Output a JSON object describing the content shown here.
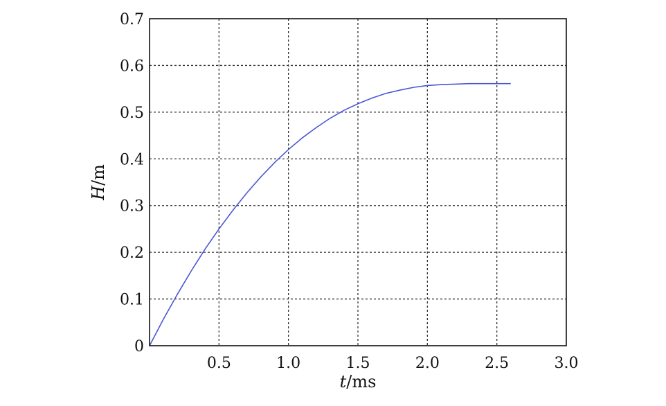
{
  "chart_data": {
    "type": "line",
    "title": "",
    "xlabel": {
      "var": "t",
      "unit": "/ms"
    },
    "ylabel": {
      "var": "H",
      "unit": "/m"
    },
    "xlim": [
      0,
      3.0
    ],
    "ylim": [
      0,
      0.7
    ],
    "x_ticks": [
      0.5,
      1.0,
      1.5,
      2.0,
      2.5,
      3.0
    ],
    "x_tick_labels": [
      "0.5",
      "1.0",
      "1.5",
      "2.0",
      "2.5",
      "3.0"
    ],
    "y_ticks": [
      0,
      0.1,
      0.2,
      0.3,
      0.4,
      0.5,
      0.6,
      0.7
    ],
    "y_tick_labels": [
      "0",
      "0.1",
      "0.2",
      "0.3",
      "0.4",
      "0.5",
      "0.6",
      "0.7"
    ],
    "grid": true,
    "legend": "none",
    "series": [
      {
        "color": "#4a56d6",
        "x": [
          0,
          0.1,
          0.2,
          0.3,
          0.4,
          0.5,
          0.6,
          0.7,
          0.8,
          0.9,
          1.0,
          1.1,
          1.2,
          1.3,
          1.4,
          1.5,
          1.6,
          1.7,
          1.8,
          1.9,
          2.0,
          2.1,
          2.2,
          2.3,
          2.4,
          2.5,
          2.6
        ],
        "y": [
          0,
          0.057,
          0.11,
          0.16,
          0.207,
          0.25,
          0.29,
          0.327,
          0.361,
          0.392,
          0.42,
          0.445,
          0.467,
          0.487,
          0.504,
          0.518,
          0.53,
          0.54,
          0.547,
          0.553,
          0.557,
          0.559,
          0.56,
          0.561,
          0.561,
          0.561,
          0.561
        ]
      }
    ]
  }
}
